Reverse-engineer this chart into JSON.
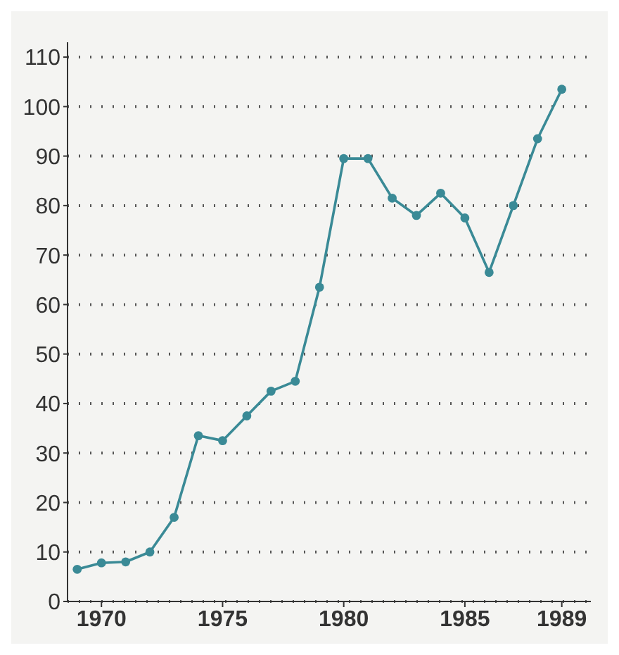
{
  "chart_data": {
    "type": "line",
    "x": [
      1969,
      1970,
      1971,
      1972,
      1973,
      1974,
      1975,
      1976,
      1977,
      1978,
      1979,
      1980,
      1981,
      1982,
      1983,
      1984,
      1985,
      1986,
      1987,
      1988,
      1989
    ],
    "series": [
      {
        "color": "#3a8a96",
        "values": [
          6.5,
          7.8,
          8,
          10,
          17,
          33.5,
          32.5,
          37.5,
          42.5,
          44.5,
          63.5,
          89.5,
          89.5,
          81.5,
          78,
          82.5,
          77.5,
          66.5,
          80,
          93.5,
          103.5
        ]
      }
    ],
    "xlim": [
      1968.6,
      1990.2
    ],
    "xticks": [
      1970,
      1975,
      1980,
      1985,
      1989
    ],
    "ylim": [
      0,
      113
    ],
    "yticks": [
      0,
      10,
      20,
      30,
      40,
      50,
      60,
      70,
      80,
      90,
      100,
      110
    ],
    "grid": "y",
    "marker": "circle",
    "line_style": "solid"
  }
}
